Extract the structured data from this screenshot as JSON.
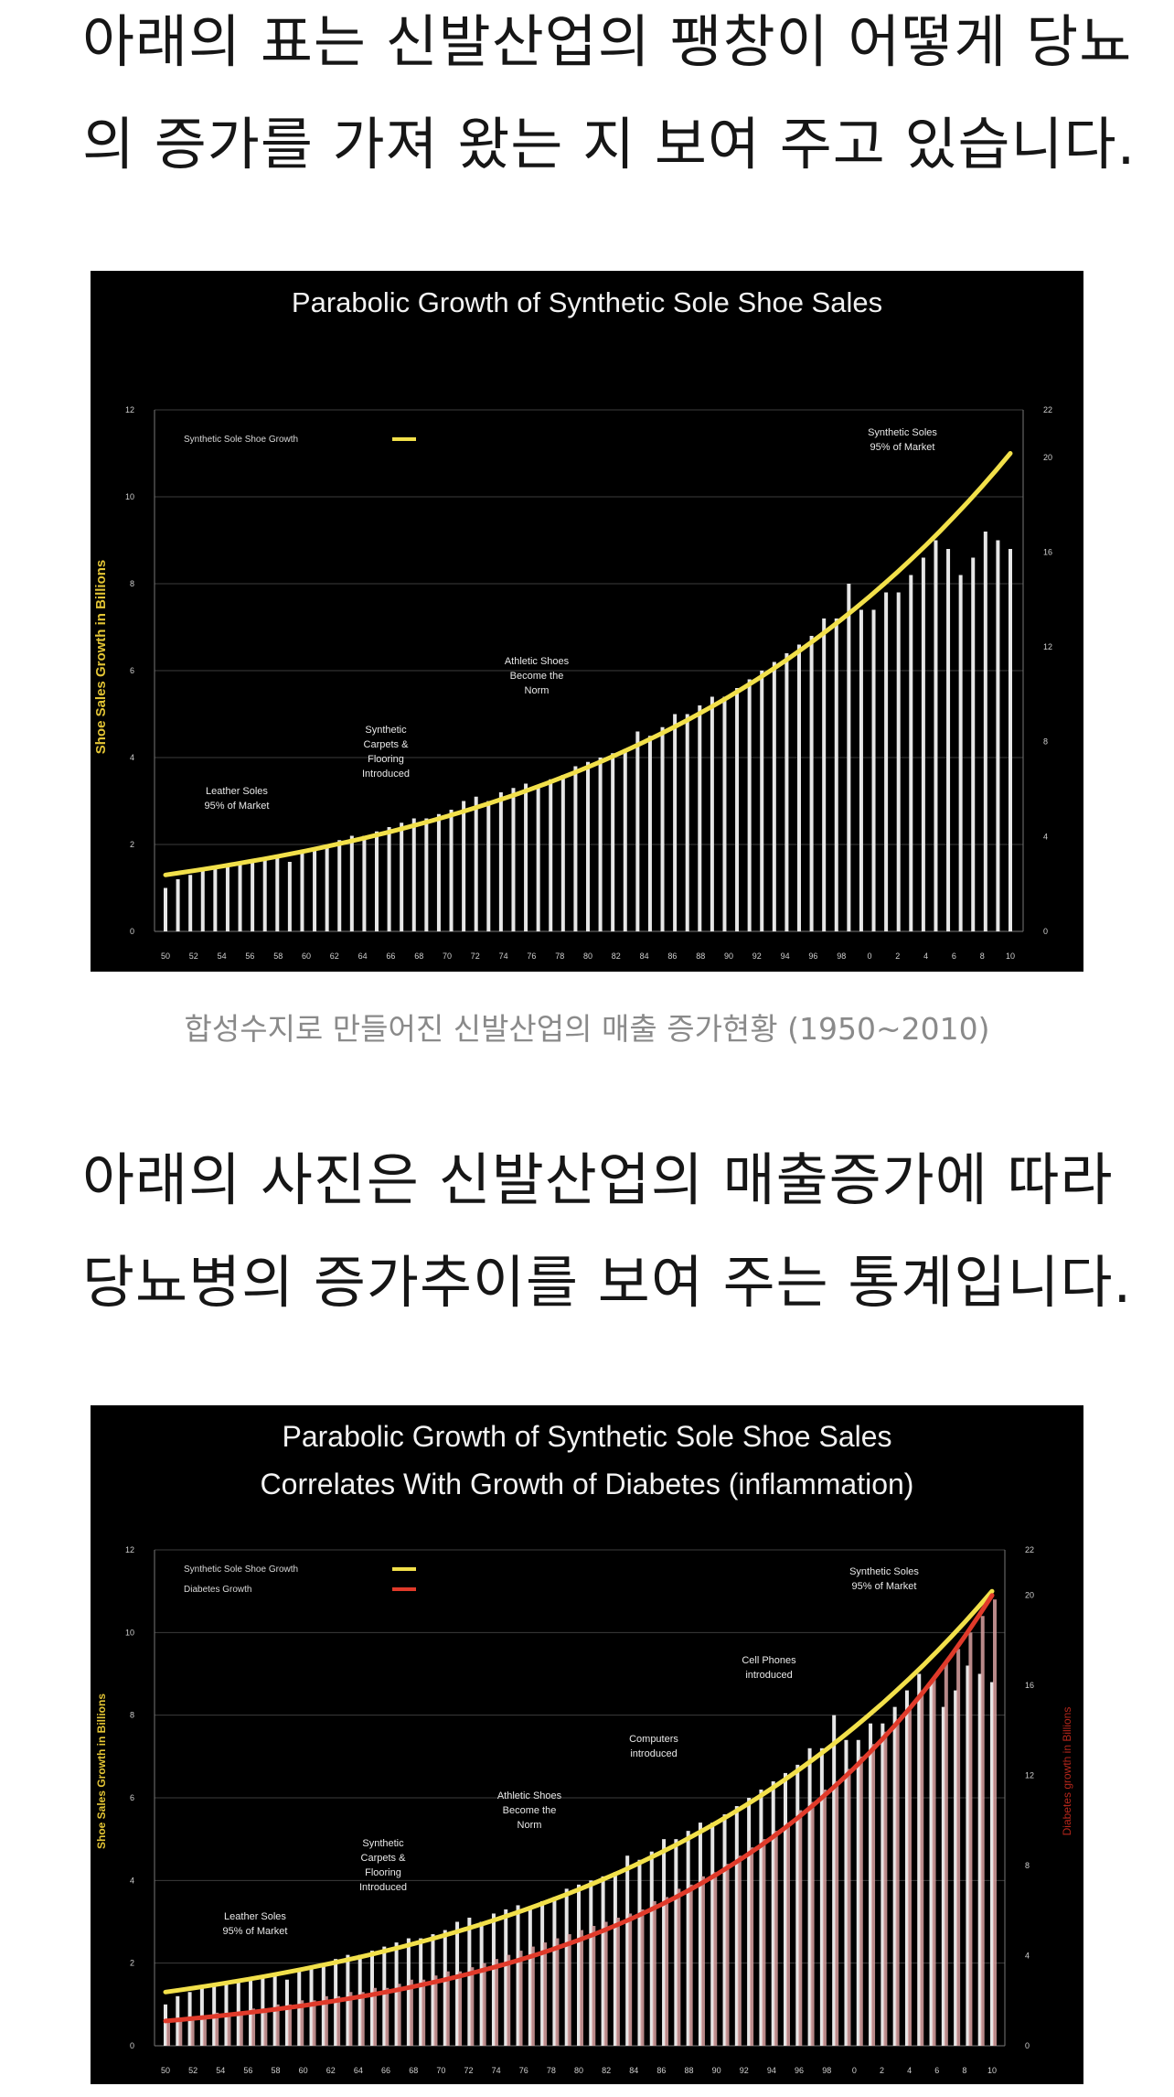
{
  "intro_text": {
    "line1": "아래의 표는 신발산업의 팽창이 어떻게 당뇨",
    "line2": "의 증가를 가져 왔는 지 보여 주고 있습니다."
  },
  "caption1": "합성수지로 만들어진 신발산업의 매출 증가현황 (1950~2010)",
  "second_text": {
    "line1": "아래의 사진은 신발산업의 매출증가에 따라",
    "line2": "당뇨병의 증가추이를 보여 주는 통계입니다."
  },
  "chart_data": [
    {
      "type": "bar",
      "title": "Parabolic Growth of Synthetic Sole Shoe Sales",
      "ylabel": "Shoe Sales Growth in Billions",
      "ylim": [
        0,
        12
      ],
      "y_ticks": [
        "0",
        "2",
        "4",
        "6",
        "8",
        "10",
        "12"
      ],
      "y2lim": [
        0,
        22
      ],
      "y2_ticks": [
        "0",
        "4",
        "8",
        "12",
        "16",
        "20",
        "22"
      ],
      "x_tick_labels": [
        "50",
        "52",
        "54",
        "56",
        "58",
        "60",
        "62",
        "64",
        "66",
        "68",
        "70",
        "72",
        "74",
        "76",
        "78",
        "80",
        "82",
        "84",
        "86",
        "88",
        "90",
        "92",
        "94",
        "96",
        "98",
        "0",
        "2",
        "4",
        "6",
        "8",
        "10"
      ],
      "legend": [
        {
          "name": "Synthetic Sole Shoe Growth",
          "color": "#f2e04a"
        }
      ],
      "legend_position": "top-left",
      "bar_color": "#e6e6e6",
      "series": [
        {
          "name": "Shoe Sales",
          "values": [
            1.0,
            1.2,
            1.3,
            1.4,
            1.5,
            1.5,
            1.6,
            1.6,
            1.7,
            1.7,
            1.6,
            1.8,
            1.9,
            2.0,
            2.1,
            2.2,
            2.2,
            2.3,
            2.4,
            2.5,
            2.6,
            2.6,
            2.7,
            2.8,
            3.0,
            3.1,
            3.0,
            3.2,
            3.3,
            3.4,
            3.3,
            3.5,
            3.6,
            3.8,
            3.9,
            4.0,
            4.1,
            4.2,
            4.6,
            4.5,
            4.7,
            5.0,
            5.0,
            5.2,
            5.4,
            5.4,
            5.6,
            5.8,
            6.0,
            6.2,
            6.4,
            6.6,
            6.8,
            7.2,
            7.2,
            8.0,
            7.4,
            7.4,
            7.8,
            7.8,
            8.2,
            8.6,
            9.0,
            8.8,
            8.2,
            8.6,
            9.2,
            9.0,
            8.8
          ]
        }
      ],
      "trend": [
        {
          "name": "Synthetic Sole Shoe Growth",
          "color": "#f2e04a",
          "y_start": 1.3,
          "y_end": 11.0
        }
      ],
      "annotations": [
        {
          "text": "Synthetic Soles\n95% of Market"
        },
        {
          "text": "Athletic Shoes\nBecome the\nNorm"
        },
        {
          "text": "Synthetic\nCarpets &\nFlooring\nIntroduced"
        },
        {
          "text": "Leather Soles\n95% of Market"
        }
      ]
    },
    {
      "type": "bar",
      "title": "Parabolic Growth of Synthetic Sole Shoe Sales\nCorrelates With Growth of Diabetes (inflammation)",
      "ylabel": "Shoe Sales Growth in Billions",
      "y2label": "Diabetes growth in Billions",
      "ylim": [
        0,
        12
      ],
      "y_ticks": [
        "0",
        "2",
        "4",
        "6",
        "8",
        "10",
        "12"
      ],
      "y2lim": [
        0,
        22
      ],
      "y2_ticks": [
        "0",
        "4",
        "8",
        "12",
        "16",
        "20",
        "22"
      ],
      "x_tick_labels": [
        "50",
        "52",
        "54",
        "56",
        "58",
        "60",
        "62",
        "64",
        "66",
        "68",
        "70",
        "72",
        "74",
        "76",
        "78",
        "80",
        "82",
        "84",
        "86",
        "88",
        "90",
        "92",
        "94",
        "96",
        "98",
        "0",
        "2",
        "4",
        "6",
        "8",
        "10"
      ],
      "legend": [
        {
          "name": "Synthetic Sole Shoe Growth",
          "color": "#f2e04a"
        },
        {
          "name": "Diabetes Growth",
          "color": "#e03a2a"
        }
      ],
      "legend_position": "top-left",
      "bar_color": "#e6e6e6",
      "bar2_color": "#d8a1a1",
      "series": [
        {
          "name": "Shoe Sales",
          "values": [
            1.0,
            1.2,
            1.3,
            1.4,
            1.5,
            1.5,
            1.6,
            1.6,
            1.7,
            1.7,
            1.6,
            1.8,
            1.9,
            2.0,
            2.1,
            2.2,
            2.2,
            2.3,
            2.4,
            2.5,
            2.6,
            2.6,
            2.7,
            2.8,
            3.0,
            3.1,
            3.0,
            3.2,
            3.3,
            3.4,
            3.3,
            3.5,
            3.6,
            3.8,
            3.9,
            4.0,
            4.1,
            4.2,
            4.6,
            4.5,
            4.7,
            5.0,
            5.0,
            5.2,
            5.4,
            5.4,
            5.6,
            5.8,
            6.0,
            6.2,
            6.4,
            6.6,
            6.8,
            7.2,
            7.2,
            8.0,
            7.4,
            7.4,
            7.8,
            7.8,
            8.2,
            8.6,
            9.0,
            8.8,
            8.2,
            8.6,
            9.2,
            9.0,
            8.8
          ]
        },
        {
          "name": "Diabetes",
          "values": [
            0.6,
            0.6,
            0.7,
            0.7,
            0.8,
            0.8,
            0.8,
            0.9,
            0.9,
            1.0,
            1.0,
            1.1,
            1.1,
            1.2,
            1.2,
            1.3,
            1.3,
            1.4,
            1.4,
            1.5,
            1.6,
            1.6,
            1.7,
            1.8,
            1.8,
            1.9,
            2.0,
            2.1,
            2.2,
            2.3,
            2.4,
            2.5,
            2.6,
            2.7,
            2.8,
            2.9,
            3.0,
            3.1,
            3.2,
            3.3,
            3.5,
            3.6,
            3.8,
            3.9,
            4.1,
            4.2,
            4.4,
            4.6,
            4.8,
            5.0,
            5.2,
            5.4,
            5.7,
            5.9,
            6.2,
            6.4,
            6.7,
            7.0,
            7.3,
            7.6,
            7.9,
            8.2,
            8.6,
            8.9,
            9.3,
            9.6,
            10.0,
            10.4,
            10.8
          ]
        }
      ],
      "trend": [
        {
          "name": "Synthetic Sole Shoe Growth",
          "color": "#f2e04a",
          "y_start": 1.3,
          "y_end": 11.0
        },
        {
          "name": "Diabetes Growth",
          "color": "#e03a2a",
          "y_start": 0.6,
          "y_end": 10.9
        }
      ],
      "annotations": [
        {
          "text": "Synthetic Soles\n95% of Market"
        },
        {
          "text": "Cell Phones\nintroduced"
        },
        {
          "text": "Computers\nintroduced"
        },
        {
          "text": "Athletic Shoes\nBecome the\nNorm"
        },
        {
          "text": "Synthetic\nCarpets &\nFlooring\nIntroduced"
        },
        {
          "text": "Leather Soles\n95% of Market"
        }
      ]
    }
  ]
}
